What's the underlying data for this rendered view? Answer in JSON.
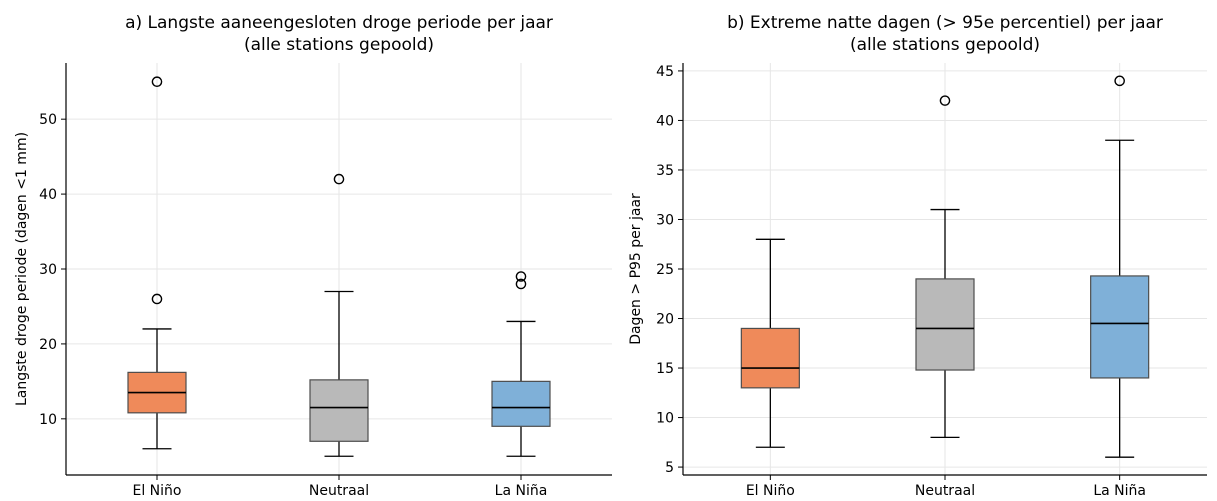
{
  "chart_data": [
    {
      "type": "box",
      "title_lines": [
        "a) Langste aaneengesloten droge periode per jaar",
        "(alle stations gepoold)"
      ],
      "xlabel": "",
      "ylabel": "Langste droge periode (dagen <1 mm)",
      "ylim": [
        2.5,
        57.5
      ],
      "yticks": [
        10,
        20,
        30,
        40,
        50
      ],
      "grid": true,
      "categories": [
        "El Niño",
        "Neutraal",
        "La Niña"
      ],
      "colors": [
        "#ef8a5a",
        "#b9b9b9",
        "#7fb0d8"
      ],
      "boxes": [
        {
          "whisker_low": 6,
          "q1": 10.8,
          "median": 13.5,
          "q3": 16.2,
          "whisker_high": 22,
          "outliers": [
            26,
            55
          ]
        },
        {
          "whisker_low": 5,
          "q1": 7,
          "median": 11.5,
          "q3": 15.2,
          "whisker_high": 27,
          "outliers": [
            42
          ]
        },
        {
          "whisker_low": 5,
          "q1": 9,
          "median": 11.5,
          "q3": 15,
          "whisker_high": 23,
          "outliers": [
            28,
            29
          ]
        }
      ]
    },
    {
      "type": "box",
      "title_lines": [
        "b) Extreme natte dagen (> 95e percentiel) per jaar",
        "(alle stations gepoold)"
      ],
      "xlabel": "",
      "ylabel": "Dagen > P95 per jaar",
      "ylim": [
        4.2,
        45.8
      ],
      "yticks": [
        5,
        10,
        15,
        20,
        25,
        30,
        35,
        40,
        45
      ],
      "grid": true,
      "categories": [
        "El Niño",
        "Neutraal",
        "La Niña"
      ],
      "colors": [
        "#ef8a5a",
        "#b9b9b9",
        "#7fb0d8"
      ],
      "boxes": [
        {
          "whisker_low": 7,
          "q1": 13,
          "median": 15,
          "q3": 19,
          "whisker_high": 28,
          "outliers": []
        },
        {
          "whisker_low": 8,
          "q1": 14.8,
          "median": 19,
          "q3": 24,
          "whisker_high": 31,
          "outliers": [
            42
          ]
        },
        {
          "whisker_low": 6,
          "q1": 14,
          "median": 19.5,
          "q3": 24.3,
          "whisker_high": 38,
          "outliers": [
            44
          ]
        }
      ]
    }
  ]
}
